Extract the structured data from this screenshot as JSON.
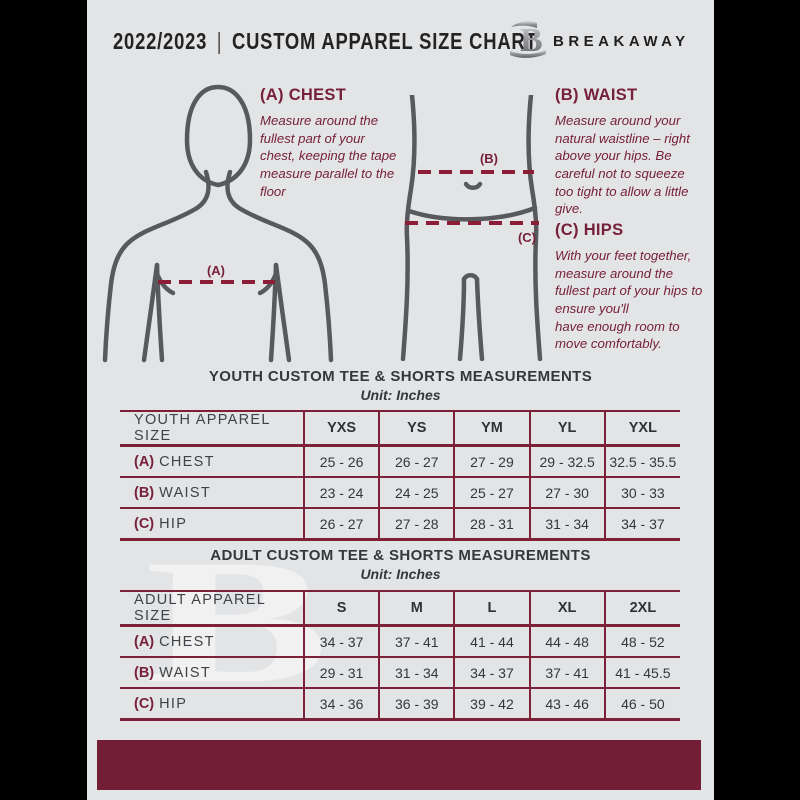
{
  "page": {
    "background": "#000000",
    "paper_color": "#e3e4e6",
    "accent_color": "#76203A",
    "footer_color": "#731E36",
    "figure_outline_color": "#58595c",
    "watermark_letter": "B"
  },
  "header": {
    "year": "2022/2023",
    "separator": "|",
    "title": "CUSTOM APPAREL SIZE CHART",
    "brand": "BREAKAWAY"
  },
  "sections": {
    "chest": {
      "heading": "(A) CHEST",
      "body": "Measure around the fullest part of your chest, keeping the tape measure parallel to the floor"
    },
    "waist": {
      "heading": "(B) WAIST",
      "body": "Measure around your natural waistline – right above your hips. Be careful not to squeeze too tight to allow a little give."
    },
    "hips": {
      "heading": "(C) HIPS",
      "body": "With your feet together, measure around the fullest part of your hips to ensure you'll\nhave enough room to move comfortably."
    }
  },
  "diagram_labels": {
    "chest": "(A)",
    "waist": "(B)",
    "hips": "(C)"
  },
  "tables": {
    "youth": {
      "title": "YOUTH CUSTOM TEE & SHORTS MEASUREMENTS",
      "unit": "Unit: Inches",
      "columns": [
        "YOUTH APPAREL SIZE",
        "YXS",
        "YS",
        "YM",
        "YL",
        "YXL"
      ],
      "rows": [
        {
          "prefix": "(A)",
          "label": "CHEST",
          "values": [
            "25 - 26",
            "26 - 27",
            "27 - 29",
            "29 - 32.5",
            "32.5 - 35.5"
          ]
        },
        {
          "prefix": "(B)",
          "label": "WAIST",
          "values": [
            "23 - 24",
            "24 - 25",
            "25 - 27",
            "27 - 30",
            "30 - 33"
          ]
        },
        {
          "prefix": "(C)",
          "label": "HIP",
          "values": [
            "26 - 27",
            "27 - 28",
            "28 - 31",
            "31 - 34",
            "34 - 37"
          ]
        }
      ]
    },
    "adult": {
      "title": "ADULT CUSTOM TEE & SHORTS MEASUREMENTS",
      "unit": "Unit: Inches",
      "columns": [
        "ADULT APPAREL SIZE",
        "S",
        "M",
        "L",
        "XL",
        "2XL"
      ],
      "rows": [
        {
          "prefix": "(A)",
          "label": "CHEST",
          "values": [
            "34 - 37",
            "37 - 41",
            "41 - 44",
            "44 - 48",
            "48 - 52"
          ]
        },
        {
          "prefix": "(B)",
          "label": "WAIST",
          "values": [
            "29 - 31",
            "31 - 34",
            "34 - 37",
            "37 - 41",
            "41 - 45.5"
          ]
        },
        {
          "prefix": "(C)",
          "label": "HIP",
          "values": [
            "34 - 36",
            "36 - 39",
            "39 - 42",
            "43 - 46",
            "46 - 50"
          ]
        }
      ]
    }
  }
}
